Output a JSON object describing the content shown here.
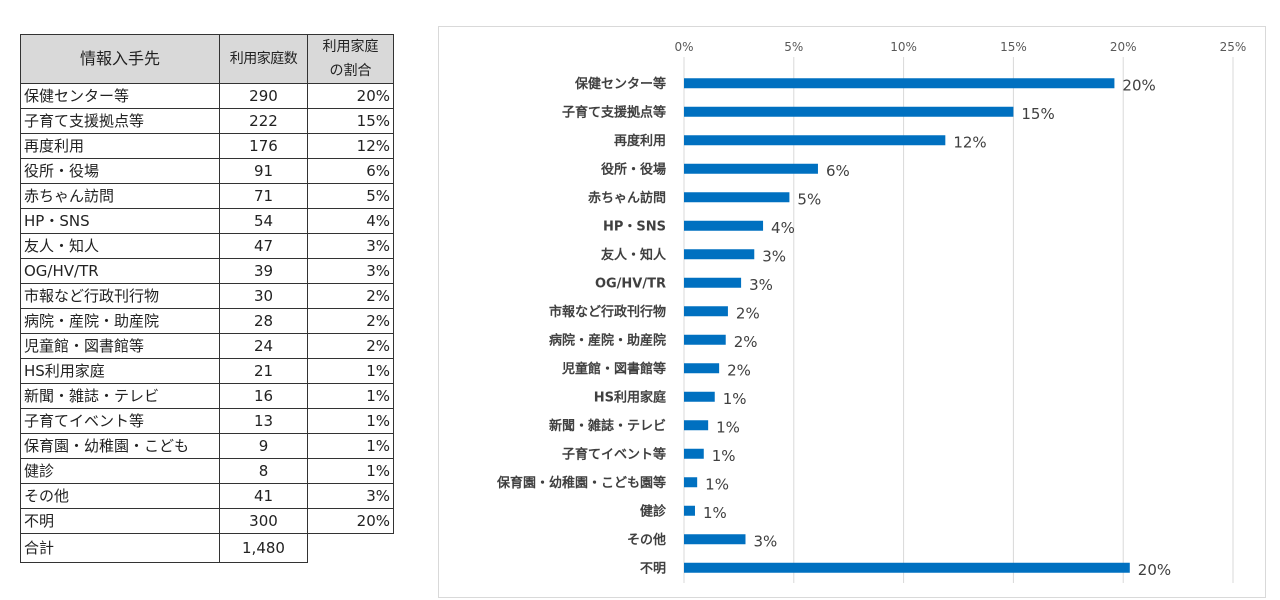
{
  "table": {
    "headers": {
      "source": "情報入手先",
      "count": "利用家庭数",
      "rate_line1": "利用家庭",
      "rate_line2": "の割合"
    },
    "rows": [
      {
        "source": "保健センター等",
        "count": "290",
        "rate": "20%"
      },
      {
        "source": "子育て支援拠点等",
        "count": "222",
        "rate": "15%"
      },
      {
        "source": "再度利用",
        "count": "176",
        "rate": "12%"
      },
      {
        "source": "役所・役場",
        "count": "91",
        "rate": "6%"
      },
      {
        "source": "赤ちゃん訪問",
        "count": "71",
        "rate": "5%"
      },
      {
        "source": "HP・SNS",
        "count": "54",
        "rate": "4%"
      },
      {
        "source": "友人・知人",
        "count": "47",
        "rate": "3%"
      },
      {
        "source": "OG/HV/TR",
        "count": "39",
        "rate": "3%"
      },
      {
        "source": "市報など行政刊行物",
        "count": "30",
        "rate": "2%"
      },
      {
        "source": "病院・産院・助産院",
        "count": "28",
        "rate": "2%"
      },
      {
        "source": "児童館・図書館等",
        "count": "24",
        "rate": "2%"
      },
      {
        "source": "HS利用家庭",
        "count": "21",
        "rate": "1%"
      },
      {
        "source": "新聞・雑誌・テレビ",
        "count": "16",
        "rate": "1%"
      },
      {
        "source": "子育てイベント等",
        "count": "13",
        "rate": "1%"
      },
      {
        "source": "保育園・幼稚園・こども",
        "count": "9",
        "rate": "1%"
      },
      {
        "source": "健診",
        "count": "8",
        "rate": "1%"
      },
      {
        "source": "その他",
        "count": "41",
        "rate": "3%"
      },
      {
        "source": "不明",
        "count": "300",
        "rate": "20%"
      }
    ],
    "total": {
      "label": "合計",
      "count": "1,480"
    }
  },
  "chart_data": {
    "type": "bar",
    "orientation": "horizontal",
    "categories": [
      "保健センター等",
      "子育て支援拠点等",
      "再度利用",
      "役所・役場",
      "赤ちゃん訪問",
      "HP・SNS",
      "友人・知人",
      "OG/HV/TR",
      "市報など行政刊行物",
      "病院・産院・助産院",
      "児童館・図書館等",
      "HS利用家庭",
      "新聞・雑誌・テレビ",
      "子育てイベント等",
      "保育園・幼稚園・こども園等",
      "健診",
      "その他",
      "不明"
    ],
    "values": [
      19.6,
      15.0,
      11.9,
      6.1,
      4.8,
      3.6,
      3.2,
      2.6,
      2.0,
      1.9,
      1.6,
      1.4,
      1.1,
      0.9,
      0.6,
      0.5,
      2.8,
      20.3
    ],
    "data_labels": [
      "20%",
      "15%",
      "12%",
      "6%",
      "5%",
      "4%",
      "3%",
      "3%",
      "2%",
      "2%",
      "2%",
      "1%",
      "1%",
      "1%",
      "1%",
      "1%",
      "3%",
      "20%"
    ],
    "xlim": [
      0,
      25
    ],
    "x_ticks": [
      "0%",
      "5%",
      "10%",
      "15%",
      "20%",
      "25%"
    ],
    "x_axis_position": "top",
    "grid": true,
    "bar_color": "#0070c0",
    "title": "",
    "xlabel": "",
    "ylabel": ""
  }
}
